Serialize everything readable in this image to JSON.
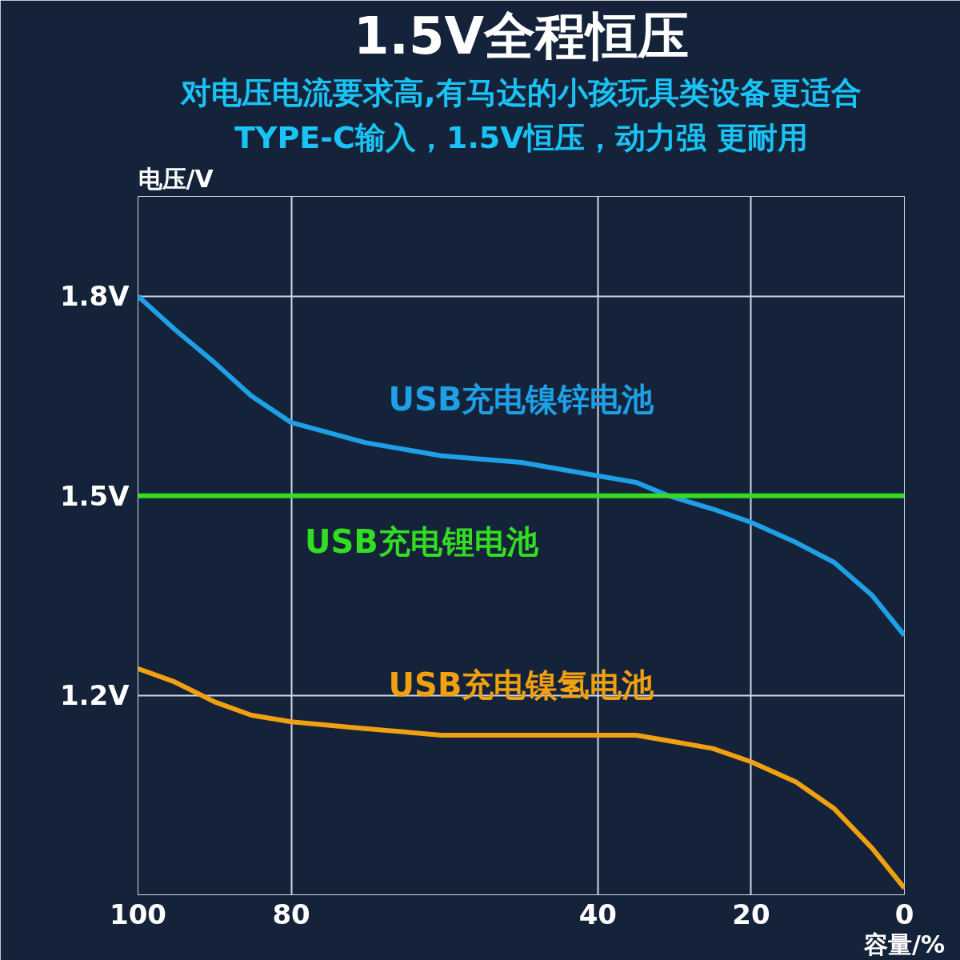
{
  "chart_data": {
    "type": "line",
    "title": "1.5V全程恒压",
    "subtitle": "对电压电流要求高,有马达的小孩玩具类设备更适合",
    "annotations": [
      "TYPE-C输入，1.5V恒压，动力强 更耐用"
    ],
    "xlabel": "容量/%",
    "ylabel": "电压/V",
    "xlim": [
      100,
      0
    ],
    "xticks": [
      100,
      80,
      40,
      20,
      0
    ],
    "ylim": [
      0.9,
      1.95
    ],
    "yticks": [
      {
        "value": 1.2,
        "label": "1.2V"
      },
      {
        "value": 1.5,
        "label": "1.5V"
      },
      {
        "value": 1.8,
        "label": "1.8V"
      }
    ],
    "grid": true,
    "series": [
      {
        "name": "USB充电镍锌电池",
        "color": "#1ea0e6",
        "x": [
          100,
          95.2,
          90,
          85.2,
          80,
          70.4,
          60.4,
          50,
          40,
          35,
          30.8,
          25,
          20,
          14.2,
          9.2,
          4.2,
          0
        ],
        "values": [
          1.8,
          1.75,
          1.7,
          1.65,
          1.61,
          1.58,
          1.56,
          1.55,
          1.53,
          1.52,
          1.5,
          1.48,
          1.46,
          1.43,
          1.4,
          1.35,
          1.29
        ]
      },
      {
        "name": "USB充电锂电池",
        "color": "#33dd22",
        "x": [
          100,
          0
        ],
        "values": [
          1.5,
          1.5
        ]
      },
      {
        "name": "USB充电镍氢电池",
        "color": "#f0a010",
        "x": [
          100,
          95.2,
          90,
          85.2,
          80,
          70.4,
          60.4,
          50,
          40,
          35,
          30,
          25,
          20,
          14.2,
          9.2,
          4.2,
          0
        ],
        "values": [
          1.24,
          1.22,
          1.19,
          1.17,
          1.16,
          1.15,
          1.14,
          1.14,
          1.14,
          1.14,
          1.13,
          1.12,
          1.1,
          1.07,
          1.03,
          0.97,
          0.91
        ]
      }
    ]
  }
}
